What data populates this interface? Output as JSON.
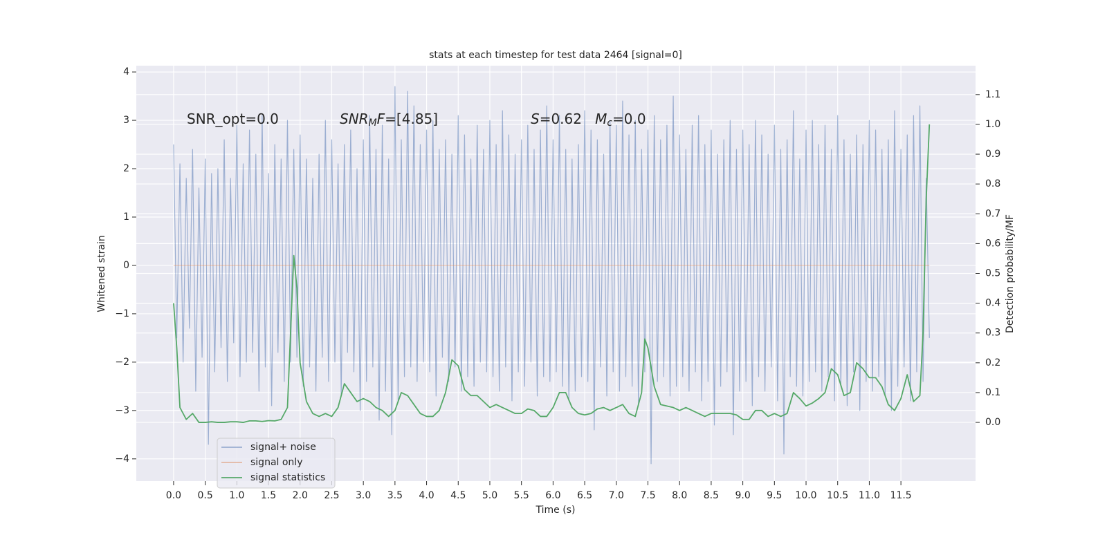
{
  "chart_data": {
    "type": "line",
    "title": "stats at each timestep for test data 2464 [signal=0]",
    "xlabel": "Time (s)",
    "ylabel": "Whitened strain",
    "y2label": "Detection probability/MF",
    "annotations": [
      [
        {
          "text": "SNR_opt=0.0",
          "style": "normal"
        }
      ],
      [
        {
          "text": "SNR",
          "style": "italic"
        },
        {
          "text": "M",
          "style": "italic-sub"
        },
        {
          "text": "F",
          "style": "italic"
        },
        {
          "text": "=[4.85]",
          "style": "normal"
        }
      ],
      [
        {
          "text": "S",
          "style": "italic"
        },
        {
          "text": "=0.62   ",
          "style": "normal"
        },
        {
          "text": "M",
          "style": "italic"
        },
        {
          "text": "c",
          "style": "italic-sub"
        },
        {
          "text": "=0.0",
          "style": "normal"
        }
      ]
    ],
    "xlim": [
      -0.59,
      12.68
    ],
    "ylim": [
      -4.46,
      4.13
    ],
    "y2lim": [
      -0.197,
      1.197
    ],
    "xticks": [
      {
        "value": 0,
        "label": "0.0"
      },
      {
        "value": 0.5,
        "label": "0.5"
      },
      {
        "value": 1,
        "label": "1.0"
      },
      {
        "value": 1.5,
        "label": "1.5"
      },
      {
        "value": 2,
        "label": "2.0"
      },
      {
        "value": 2.5,
        "label": "2.5"
      },
      {
        "value": 3,
        "label": "3.0"
      },
      {
        "value": 3.5,
        "label": "3.5"
      },
      {
        "value": 4,
        "label": "4.0"
      },
      {
        "value": 4.5,
        "label": "4.5"
      },
      {
        "value": 5,
        "label": "5.0"
      },
      {
        "value": 5.5,
        "label": "5.5"
      },
      {
        "value": 6,
        "label": "6.0"
      },
      {
        "value": 6.5,
        "label": "6.5"
      },
      {
        "value": 7,
        "label": "7.0"
      },
      {
        "value": 7.5,
        "label": "7.5"
      },
      {
        "value": 8,
        "label": "8.0"
      },
      {
        "value": 8.5,
        "label": "8.5"
      },
      {
        "value": 9,
        "label": "9.0"
      },
      {
        "value": 9.5,
        "label": "9.5"
      },
      {
        "value": 10,
        "label": "10.0"
      },
      {
        "value": 10.5,
        "label": "10.5"
      },
      {
        "value": 11,
        "label": "11.0"
      },
      {
        "value": 11.5,
        "label": "11.5"
      }
    ],
    "yticks": [
      {
        "value": -4,
        "label": "−4"
      },
      {
        "value": -3,
        "label": "−3"
      },
      {
        "value": -2,
        "label": "−2"
      },
      {
        "value": -1,
        "label": "−1"
      },
      0,
      1,
      2,
      3,
      4
    ],
    "y2ticks": [
      {
        "value": 0,
        "label": "0.0"
      },
      {
        "value": 0.1,
        "label": "0.1"
      },
      {
        "value": 0.2,
        "label": "0.2"
      },
      {
        "value": 0.3,
        "label": "0.3"
      },
      {
        "value": 0.4,
        "label": "0.4"
      },
      {
        "value": 0.5,
        "label": "0.5"
      },
      {
        "value": 0.6,
        "label": "0.6"
      },
      {
        "value": 0.7,
        "label": "0.7"
      },
      {
        "value": 0.8,
        "label": "0.8"
      },
      {
        "value": 0.9,
        "label": "0.9"
      },
      {
        "value": 1.0,
        "label": "1.0"
      },
      {
        "value": 1.1,
        "label": "1.1"
      }
    ],
    "grid": true,
    "legend": "lower left",
    "series": [
      {
        "name": "signal+ noise",
        "color": "#4c72b0",
        "opacity": 0.5,
        "x": [
          0,
          0.05,
          0.1,
          0.15,
          0.2,
          0.25,
          0.3,
          0.35,
          0.4,
          0.45,
          0.5,
          0.55,
          0.6,
          0.65,
          0.7,
          0.75,
          0.8,
          0.85,
          0.9,
          0.95,
          1,
          1.05,
          1.1,
          1.15,
          1.2,
          1.25,
          1.3,
          1.35,
          1.4,
          1.45,
          1.5,
          1.55,
          1.6,
          1.65,
          1.7,
          1.75,
          1.8,
          1.85,
          1.9,
          1.95,
          2,
          2.05,
          2.1,
          2.15,
          2.2,
          2.25,
          2.3,
          2.35,
          2.4,
          2.45,
          2.5,
          2.55,
          2.6,
          2.65,
          2.7,
          2.75,
          2.8,
          2.85,
          2.9,
          2.95,
          3,
          3.05,
          3.1,
          3.15,
          3.2,
          3.25,
          3.3,
          3.35,
          3.4,
          3.45,
          3.5,
          3.55,
          3.6,
          3.65,
          3.7,
          3.75,
          3.8,
          3.85,
          3.9,
          3.95,
          4,
          4.05,
          4.1,
          4.15,
          4.2,
          4.25,
          4.3,
          4.35,
          4.4,
          4.45,
          4.5,
          4.55,
          4.6,
          4.65,
          4.7,
          4.75,
          4.8,
          4.85,
          4.9,
          4.95,
          5,
          5.05,
          5.1,
          5.15,
          5.2,
          5.25,
          5.3,
          5.35,
          5.4,
          5.45,
          5.5,
          5.55,
          5.6,
          5.65,
          5.7,
          5.75,
          5.8,
          5.85,
          5.9,
          5.95,
          6,
          6.05,
          6.1,
          6.15,
          6.2,
          6.25,
          6.3,
          6.35,
          6.4,
          6.45,
          6.5,
          6.55,
          6.6,
          6.65,
          6.7,
          6.75,
          6.8,
          6.85,
          6.9,
          6.95,
          7,
          7.05,
          7.1,
          7.15,
          7.2,
          7.25,
          7.3,
          7.35,
          7.4,
          7.45,
          7.5,
          7.55,
          7.6,
          7.65,
          7.7,
          7.75,
          7.8,
          7.85,
          7.9,
          7.95,
          8,
          8.05,
          8.1,
          8.15,
          8.2,
          8.25,
          8.3,
          8.35,
          8.4,
          8.45,
          8.5,
          8.55,
          8.6,
          8.65,
          8.7,
          8.75,
          8.8,
          8.85,
          8.9,
          8.95,
          9,
          9.05,
          9.1,
          9.15,
          9.2,
          9.25,
          9.3,
          9.35,
          9.4,
          9.45,
          9.5,
          9.55,
          9.6,
          9.65,
          9.7,
          9.75,
          9.8,
          9.85,
          9.9,
          9.95,
          10,
          10.05,
          10.1,
          10.15,
          10.2,
          10.25,
          10.3,
          10.35,
          10.4,
          10.45,
          10.5,
          10.55,
          10.6,
          10.65,
          10.7,
          10.75,
          10.8,
          10.85,
          10.9,
          10.95,
          11,
          11.05,
          11.1,
          11.15,
          11.2,
          11.25,
          11.3,
          11.35,
          11.4,
          11.45,
          11.5,
          11.55,
          11.6,
          11.65,
          11.7,
          11.75,
          11.8,
          11.85,
          11.9,
          11.95
        ],
        "values": [
          2.5,
          -1.5,
          2.1,
          -2.0,
          1.8,
          -1.3,
          2.4,
          -2.6,
          1.6,
          -1.9,
          2.2,
          -3.7,
          1.9,
          -2.2,
          2.0,
          -1.7,
          2.6,
          -2.4,
          1.8,
          -1.6,
          2.9,
          -2.3,
          2.1,
          -2.0,
          2.8,
          -1.8,
          2.3,
          -2.6,
          3.1,
          -2.1,
          1.9,
          -2.9,
          2.5,
          -1.8,
          2.2,
          -2.4,
          3.0,
          -2.0,
          2.4,
          -1.9,
          2.7,
          -2.5,
          2.2,
          -2.1,
          1.8,
          -2.6,
          2.3,
          -1.9,
          3.0,
          -2.4,
          2.6,
          -2.0,
          2.1,
          -2.7,
          2.5,
          -1.8,
          2.8,
          -2.2,
          2.0,
          -3.0,
          2.6,
          -2.4,
          3.1,
          -2.1,
          2.4,
          -3.2,
          2.9,
          -2.6,
          2.2,
          -3.5,
          3.7,
          -2.8,
          2.6,
          -2.3,
          3.6,
          -2.1,
          3.3,
          -2.4,
          2.5,
          -2.0,
          2.8,
          -2.2,
          3.0,
          -2.7,
          2.4,
          -1.9,
          2.6,
          -2.4,
          2.3,
          -2.1,
          3.1,
          -2.6,
          2.7,
          -2.3,
          2.2,
          -2.5,
          2.9,
          -2.0,
          2.4,
          -2.2,
          3.0,
          -2.3,
          2.5,
          -2.6,
          3.2,
          -2.1,
          2.7,
          -2.8,
          2.3,
          -2.2,
          2.6,
          -2.5,
          2.9,
          -2.0,
          2.4,
          -2.7,
          2.8,
          -2.3,
          3.3,
          -2.4,
          2.6,
          -2.2,
          3.1,
          -2.5,
          2.4,
          -2.8,
          2.2,
          -2.6,
          2.5,
          -2.3,
          3.2,
          -2.4,
          2.8,
          -3.4,
          2.6,
          -2.1,
          2.3,
          -2.7,
          3.0,
          -2.2,
          2.9,
          -2.6,
          3.4,
          -2.3,
          2.7,
          -2.5,
          3.0,
          -2.9,
          2.4,
          -2.2,
          2.8,
          -4.1,
          3.1,
          -2.4,
          2.6,
          -2.3,
          2.9,
          -2.7,
          3.5,
          -2.5,
          2.7,
          -2.3,
          2.4,
          -2.6,
          2.9,
          -2.2,
          3.1,
          -2.8,
          2.5,
          -2.4,
          2.8,
          -3.3,
          2.3,
          -2.5,
          2.6,
          -2.2,
          3.0,
          -3.5,
          2.4,
          -2.6,
          2.8,
          -2.4,
          2.5,
          -2.9,
          3.0,
          -2.3,
          2.7,
          -2.6,
          2.3,
          -2.1,
          2.9,
          -2.8,
          2.4,
          -3.9,
          2.6,
          -2.3,
          3.2,
          -2.5,
          2.2,
          -2.7,
          2.8,
          -2.4,
          3.0,
          -2.2,
          2.5,
          -2.6,
          2.9,
          -2.3,
          2.4,
          -2.8,
          3.1,
          -2.5,
          2.6,
          -2.9,
          2.3,
          -2.2,
          2.7,
          -3.0,
          2.5,
          -2.4,
          3.0,
          -2.6,
          2.8,
          -2.3,
          2.4,
          -2.7,
          2.6,
          -3.0,
          3.2,
          -2.5,
          2.4,
          -2.1,
          2.7,
          -2.8,
          3.1,
          -2.2,
          3.3,
          -2.4,
          1.8,
          -1.5
        ]
      },
      {
        "name": "signal only",
        "color": "#dd8452",
        "opacity": 0.5,
        "x": [
          0,
          11.95
        ],
        "values": [
          0,
          0
        ]
      },
      {
        "name": "signal statistics",
        "color": "#55a868",
        "opacity": 1,
        "axis": "y2",
        "x": [
          0,
          0.05,
          0.1,
          0.2,
          0.3,
          0.4,
          0.5,
          0.6,
          0.7,
          0.8,
          0.9,
          1.0,
          1.1,
          1.2,
          1.3,
          1.4,
          1.5,
          1.6,
          1.7,
          1.8,
          1.9,
          1.95,
          2.0,
          2.1,
          2.2,
          2.3,
          2.4,
          2.5,
          2.6,
          2.7,
          2.8,
          2.9,
          3.0,
          3.1,
          3.2,
          3.3,
          3.4,
          3.5,
          3.6,
          3.7,
          3.8,
          3.9,
          4.0,
          4.1,
          4.2,
          4.3,
          4.4,
          4.5,
          4.6,
          4.7,
          4.8,
          4.9,
          5.0,
          5.1,
          5.2,
          5.3,
          5.4,
          5.5,
          5.6,
          5.7,
          5.8,
          5.9,
          6.0,
          6.1,
          6.2,
          6.3,
          6.4,
          6.5,
          6.6,
          6.7,
          6.8,
          6.9,
          7.0,
          7.1,
          7.2,
          7.3,
          7.4,
          7.45,
          7.5,
          7.6,
          7.7,
          7.8,
          7.9,
          8.0,
          8.1,
          8.2,
          8.3,
          8.4,
          8.5,
          8.6,
          8.7,
          8.8,
          8.9,
          9.0,
          9.1,
          9.2,
          9.3,
          9.4,
          9.5,
          9.6,
          9.7,
          9.8,
          9.9,
          10.0,
          10.1,
          10.2,
          10.3,
          10.4,
          10.5,
          10.6,
          10.7,
          10.8,
          10.9,
          11.0,
          11.1,
          11.2,
          11.3,
          11.4,
          11.5,
          11.6,
          11.7,
          11.8,
          11.85,
          11.9,
          11.95
        ],
        "values": [
          0.4,
          0.25,
          0.05,
          0.01,
          0.03,
          0.0,
          0.0,
          0.002,
          0.0,
          0.0,
          0.002,
          0.002,
          0.0,
          0.005,
          0.005,
          0.003,
          0.006,
          0.005,
          0.01,
          0.05,
          0.56,
          0.45,
          0.2,
          0.07,
          0.03,
          0.02,
          0.03,
          0.02,
          0.05,
          0.13,
          0.1,
          0.07,
          0.08,
          0.07,
          0.05,
          0.04,
          0.02,
          0.04,
          0.1,
          0.09,
          0.06,
          0.03,
          0.02,
          0.02,
          0.04,
          0.1,
          0.21,
          0.19,
          0.11,
          0.09,
          0.09,
          0.07,
          0.05,
          0.06,
          0.05,
          0.04,
          0.03,
          0.03,
          0.045,
          0.04,
          0.02,
          0.02,
          0.05,
          0.1,
          0.1,
          0.05,
          0.03,
          0.025,
          0.03,
          0.045,
          0.05,
          0.04,
          0.05,
          0.06,
          0.03,
          0.02,
          0.1,
          0.28,
          0.25,
          0.12,
          0.06,
          0.055,
          0.05,
          0.04,
          0.05,
          0.04,
          0.03,
          0.02,
          0.03,
          0.03,
          0.03,
          0.03,
          0.025,
          0.01,
          0.01,
          0.04,
          0.04,
          0.02,
          0.03,
          0.02,
          0.03,
          0.1,
          0.08,
          0.055,
          0.065,
          0.08,
          0.1,
          0.18,
          0.16,
          0.09,
          0.1,
          0.2,
          0.18,
          0.15,
          0.15,
          0.12,
          0.06,
          0.04,
          0.08,
          0.16,
          0.07,
          0.09,
          0.3,
          0.75,
          1.0
        ]
      }
    ]
  }
}
